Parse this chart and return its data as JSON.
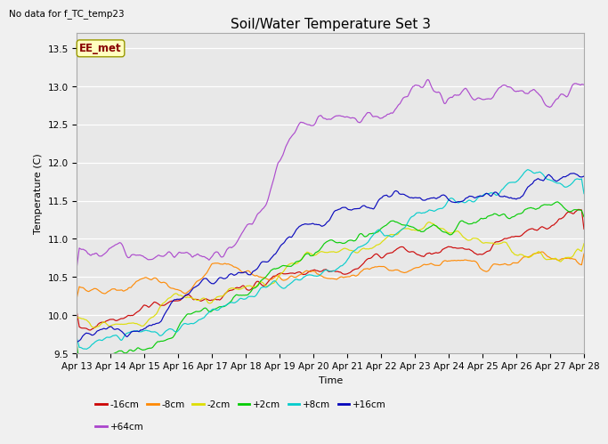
{
  "title": "Soil/Water Temperature Set 3",
  "xlabel": "Time",
  "ylabel": "Temperature (C)",
  "annotation": "No data for f_TC_temp23",
  "legend_box_label": "EE_met",
  "ylim": [
    9.5,
    13.7
  ],
  "colors": {
    "-16cm": "#cc0000",
    "-8cm": "#ff8800",
    "-2cm": "#dddd00",
    "+2cm": "#00cc00",
    "+8cm": "#00cccc",
    "+16cm": "#0000bb",
    "+64cm": "#aa44cc"
  },
  "x_tick_labels": [
    "Apr 13",
    "Apr 14",
    "Apr 15",
    "Apr 16",
    "Apr 17",
    "Apr 18",
    "Apr 19",
    "Apr 20",
    "Apr 21",
    "Apr 22",
    "Apr 23",
    "Apr 24",
    "Apr 25",
    "Apr 26",
    "Apr 27",
    "Apr 28"
  ],
  "yticks": [
    9.5,
    10.0,
    10.5,
    11.0,
    11.5,
    12.0,
    12.5,
    13.0,
    13.5
  ],
  "n_points": 1500,
  "background_color": "#e8e8e8",
  "title_fontsize": 11,
  "label_fontsize": 8,
  "tick_fontsize": 7.5
}
